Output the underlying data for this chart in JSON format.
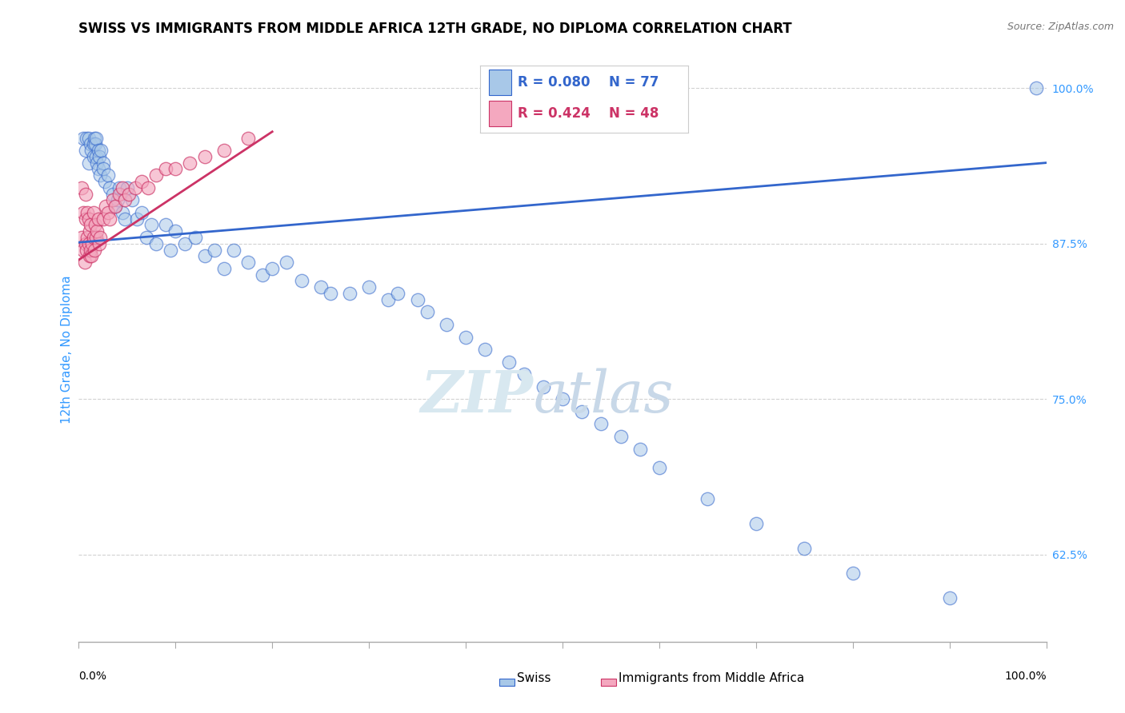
{
  "title": "SWISS VS IMMIGRANTS FROM MIDDLE AFRICA 12TH GRADE, NO DIPLOMA CORRELATION CHART",
  "source": "Source: ZipAtlas.com",
  "ylabel": "12th Grade, No Diploma",
  "ytick_labels": [
    "62.5%",
    "75.0%",
    "87.5%",
    "100.0%"
  ],
  "ytick_values": [
    0.625,
    0.75,
    0.875,
    1.0
  ],
  "xlim": [
    0.0,
    1.0
  ],
  "ylim": [
    0.555,
    1.025
  ],
  "legend_swiss": "Swiss",
  "legend_immigrants": "Immigrants from Middle Africa",
  "r_swiss": "R = 0.080",
  "n_swiss": "N = 77",
  "r_immigrants": "R = 0.424",
  "n_immigrants": "N = 48",
  "blue_color": "#a8c8e8",
  "pink_color": "#f4a8bf",
  "blue_line_color": "#3366cc",
  "pink_line_color": "#cc3366",
  "watermark_zip": "ZIP",
  "watermark_atlas": "atlas",
  "background_color": "#ffffff",
  "grid_color": "#cccccc",
  "title_fontsize": 12,
  "axis_label_fontsize": 11,
  "tick_fontsize": 10,
  "legend_fontsize": 11,
  "swiss_x": [
    0.005,
    0.007,
    0.008,
    0.01,
    0.01,
    0.012,
    0.013,
    0.015,
    0.015,
    0.016,
    0.017,
    0.018,
    0.018,
    0.019,
    0.02,
    0.02,
    0.021,
    0.022,
    0.023,
    0.025,
    0.025,
    0.027,
    0.03,
    0.032,
    0.035,
    0.038,
    0.04,
    0.042,
    0.045,
    0.048,
    0.05,
    0.055,
    0.06,
    0.065,
    0.07,
    0.075,
    0.08,
    0.09,
    0.095,
    0.1,
    0.11,
    0.12,
    0.13,
    0.14,
    0.15,
    0.16,
    0.175,
    0.19,
    0.2,
    0.215,
    0.23,
    0.25,
    0.26,
    0.28,
    0.3,
    0.32,
    0.33,
    0.35,
    0.36,
    0.38,
    0.4,
    0.42,
    0.445,
    0.46,
    0.48,
    0.5,
    0.52,
    0.54,
    0.56,
    0.58,
    0.6,
    0.65,
    0.7,
    0.75,
    0.8,
    0.9,
    0.99
  ],
  "swiss_y": [
    0.96,
    0.95,
    0.96,
    0.96,
    0.94,
    0.955,
    0.95,
    0.955,
    0.945,
    0.96,
    0.955,
    0.945,
    0.96,
    0.94,
    0.95,
    0.935,
    0.945,
    0.93,
    0.95,
    0.94,
    0.935,
    0.925,
    0.93,
    0.92,
    0.915,
    0.905,
    0.91,
    0.92,
    0.9,
    0.895,
    0.92,
    0.91,
    0.895,
    0.9,
    0.88,
    0.89,
    0.875,
    0.89,
    0.87,
    0.885,
    0.875,
    0.88,
    0.865,
    0.87,
    0.855,
    0.87,
    0.86,
    0.85,
    0.855,
    0.86,
    0.845,
    0.84,
    0.835,
    0.835,
    0.84,
    0.83,
    0.835,
    0.83,
    0.82,
    0.81,
    0.8,
    0.79,
    0.78,
    0.77,
    0.76,
    0.75,
    0.74,
    0.73,
    0.72,
    0.71,
    0.695,
    0.67,
    0.65,
    0.63,
    0.61,
    0.59,
    1.0
  ],
  "imm_x": [
    0.003,
    0.003,
    0.005,
    0.005,
    0.006,
    0.007,
    0.007,
    0.007,
    0.008,
    0.009,
    0.009,
    0.01,
    0.01,
    0.011,
    0.011,
    0.012,
    0.012,
    0.013,
    0.014,
    0.015,
    0.015,
    0.016,
    0.017,
    0.018,
    0.019,
    0.02,
    0.021,
    0.022,
    0.025,
    0.028,
    0.03,
    0.032,
    0.035,
    0.038,
    0.042,
    0.045,
    0.048,
    0.052,
    0.058,
    0.065,
    0.072,
    0.08,
    0.09,
    0.1,
    0.115,
    0.13,
    0.15,
    0.175
  ],
  "imm_y": [
    0.88,
    0.92,
    0.87,
    0.9,
    0.86,
    0.875,
    0.895,
    0.915,
    0.87,
    0.88,
    0.9,
    0.875,
    0.895,
    0.865,
    0.885,
    0.87,
    0.89,
    0.865,
    0.875,
    0.88,
    0.9,
    0.87,
    0.89,
    0.88,
    0.885,
    0.895,
    0.875,
    0.88,
    0.895,
    0.905,
    0.9,
    0.895,
    0.91,
    0.905,
    0.915,
    0.92,
    0.91,
    0.915,
    0.92,
    0.925,
    0.92,
    0.93,
    0.935,
    0.935,
    0.94,
    0.945,
    0.95,
    0.96
  ]
}
